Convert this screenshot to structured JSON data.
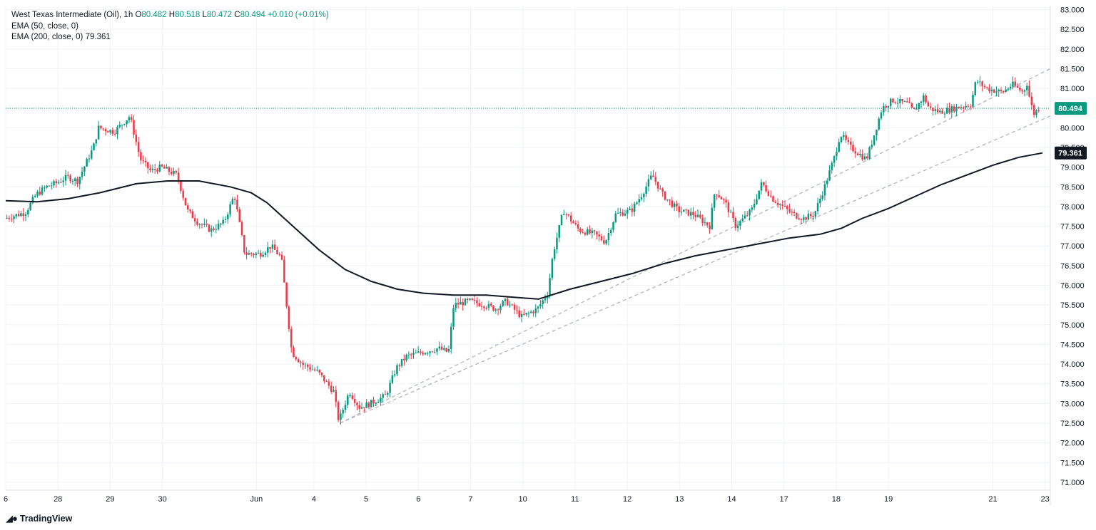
{
  "header": {
    "symbol": "West Texas Intermediate (Oil), 1h",
    "o_label": "O",
    "o_value": "80.482",
    "h_label": "H",
    "h_value": "80.518",
    "l_label": "L",
    "l_value": "80.472",
    "c_label": "C",
    "c_value": "80.494",
    "change": "+0.010 (+0.01%)",
    "ema50_label": "EMA (50, close, 0)",
    "ema200_label": "EMA (200, close, 0)",
    "ema200_value": "79.361"
  },
  "branding": {
    "logo_text": "TradingView"
  },
  "colors": {
    "up": "#089981",
    "down": "#f23645",
    "ema": "#131722",
    "trend": "#b2b5be",
    "grid": "#f0f3fa"
  },
  "chart_data": {
    "type": "candlestick",
    "price_axis": {
      "ticks": [
        "83.000",
        "82.500",
        "82.000",
        "81.500",
        "81.000",
        "80.500",
        "80.000",
        "79.500",
        "79.000",
        "78.500",
        "78.000",
        "77.500",
        "77.000",
        "76.500",
        "76.000",
        "75.500",
        "75.000",
        "74.500",
        "74.000",
        "73.500",
        "73.000",
        "72.500",
        "72.000",
        "71.500",
        "71.000"
      ],
      "range": [
        70.8,
        83.1
      ],
      "last_price_label": "80.494",
      "ema200_label": "79.361"
    },
    "time_axis": {
      "labels": [
        "6",
        "28",
        "29",
        "30",
        "Jun",
        "4",
        "5",
        "6",
        "7",
        "10",
        "11",
        "12",
        "13",
        "14",
        "17",
        "18",
        "19",
        "21",
        "23"
      ],
      "positions": [
        0.0,
        1.0,
        2.0,
        3.0,
        4.8,
        5.9,
        6.9,
        7.9,
        8.9,
        9.9,
        10.9,
        11.9,
        12.9,
        13.9,
        14.9,
        15.9,
        16.9,
        18.9,
        19.9
      ],
      "range": [
        0.0,
        20.0
      ]
    },
    "price_path": [
      [
        0.0,
        77.7
      ],
      [
        0.4,
        77.85
      ],
      [
        0.6,
        78.3
      ],
      [
        0.8,
        78.5
      ],
      [
        1.0,
        78.6
      ],
      [
        1.2,
        78.75
      ],
      [
        1.4,
        78.65
      ],
      [
        1.7,
        79.5
      ],
      [
        1.8,
        80.0
      ],
      [
        2.1,
        79.9
      ],
      [
        2.4,
        80.3
      ],
      [
        2.6,
        79.2
      ],
      [
        2.8,
        78.9
      ],
      [
        3.0,
        79.0
      ],
      [
        3.3,
        78.8
      ],
      [
        3.5,
        77.9
      ],
      [
        3.7,
        77.6
      ],
      [
        3.95,
        77.4
      ],
      [
        4.2,
        77.6
      ],
      [
        4.4,
        78.3
      ],
      [
        4.6,
        76.8
      ],
      [
        4.9,
        76.8
      ],
      [
        5.1,
        77.0
      ],
      [
        5.3,
        76.7
      ],
      [
        5.5,
        74.3
      ],
      [
        5.7,
        74.0
      ],
      [
        6.0,
        73.8
      ],
      [
        6.3,
        73.3
      ],
      [
        6.4,
        72.55
      ],
      [
        6.6,
        73.3
      ],
      [
        6.8,
        72.9
      ],
      [
        7.0,
        73.0
      ],
      [
        7.3,
        73.2
      ],
      [
        7.5,
        73.9
      ],
      [
        7.7,
        74.2
      ],
      [
        8.0,
        74.3
      ],
      [
        8.3,
        74.4
      ],
      [
        8.5,
        74.3
      ],
      [
        8.6,
        75.5
      ],
      [
        8.9,
        75.6
      ],
      [
        9.2,
        75.5
      ],
      [
        9.4,
        75.4
      ],
      [
        9.6,
        75.6
      ],
      [
        9.9,
        75.2
      ],
      [
        10.2,
        75.4
      ],
      [
        10.4,
        75.8
      ],
      [
        10.5,
        76.8
      ],
      [
        10.7,
        77.9
      ],
      [
        11.0,
        77.4
      ],
      [
        11.3,
        77.3
      ],
      [
        11.5,
        77.1
      ],
      [
        11.7,
        77.8
      ],
      [
        12.0,
        77.9
      ],
      [
        12.2,
        78.3
      ],
      [
        12.4,
        78.8
      ],
      [
        12.6,
        78.3
      ],
      [
        12.9,
        77.9
      ],
      [
        13.2,
        77.8
      ],
      [
        13.5,
        77.5
      ],
      [
        13.6,
        78.4
      ],
      [
        13.8,
        78.1
      ],
      [
        14.0,
        77.5
      ],
      [
        14.3,
        77.9
      ],
      [
        14.5,
        78.6
      ],
      [
        14.7,
        78.2
      ],
      [
        14.9,
        78.0
      ],
      [
        15.1,
        77.8
      ],
      [
        15.3,
        77.7
      ],
      [
        15.5,
        77.8
      ],
      [
        15.7,
        78.5
      ],
      [
        15.9,
        79.3
      ],
      [
        16.0,
        79.85
      ],
      [
        16.2,
        79.5
      ],
      [
        16.5,
        79.2
      ],
      [
        16.6,
        79.6
      ],
      [
        16.8,
        80.5
      ],
      [
        17.0,
        80.7
      ],
      [
        17.3,
        80.6
      ],
      [
        17.4,
        80.4
      ],
      [
        17.6,
        80.8
      ],
      [
        17.7,
        80.5
      ],
      [
        17.9,
        80.4
      ],
      [
        18.2,
        80.5
      ],
      [
        18.5,
        80.6
      ],
      [
        18.6,
        81.2
      ],
      [
        18.8,
        81.0
      ],
      [
        19.1,
        80.9
      ],
      [
        19.3,
        81.1
      ],
      [
        19.5,
        80.9
      ],
      [
        19.6,
        81.2
      ],
      [
        19.62,
        80.8
      ],
      [
        19.7,
        80.35
      ],
      [
        19.8,
        80.494
      ]
    ],
    "series": [
      {
        "name": "EMA (50, close, 0)",
        "values": [
          [
            0.0,
            78.15
          ],
          [
            0.6,
            78.12
          ],
          [
            1.2,
            78.2
          ],
          [
            1.8,
            78.35
          ],
          [
            2.5,
            78.58
          ],
          [
            3.1,
            78.65
          ],
          [
            3.7,
            78.65
          ],
          [
            4.3,
            78.5
          ],
          [
            4.7,
            78.35
          ],
          [
            5.0,
            78.1
          ],
          [
            5.5,
            77.5
          ],
          [
            6.0,
            76.9
          ],
          [
            6.5,
            76.4
          ],
          [
            7.0,
            76.1
          ],
          [
            7.5,
            75.9
          ],
          [
            8.0,
            75.8
          ],
          [
            8.6,
            75.75
          ],
          [
            9.2,
            75.75
          ],
          [
            9.7,
            75.7
          ],
          [
            10.2,
            75.65
          ],
          [
            10.8,
            75.9
          ],
          [
            11.4,
            76.1
          ],
          [
            12.0,
            76.3
          ],
          [
            12.6,
            76.55
          ],
          [
            13.2,
            76.75
          ],
          [
            13.8,
            76.9
          ],
          [
            14.4,
            77.05
          ],
          [
            15.0,
            77.2
          ],
          [
            15.6,
            77.3
          ],
          [
            16.0,
            77.45
          ],
          [
            16.4,
            77.7
          ],
          [
            16.9,
            77.95
          ],
          [
            17.4,
            78.25
          ],
          [
            17.9,
            78.55
          ],
          [
            18.4,
            78.8
          ],
          [
            18.9,
            79.05
          ],
          [
            19.4,
            79.25
          ],
          [
            19.85,
            79.361
          ]
        ]
      }
    ],
    "trend_lines": [
      {
        "from": [
          6.4,
          72.5
        ],
        "to": [
          20.0,
          81.5
        ]
      },
      {
        "from": [
          6.4,
          72.5
        ],
        "to": [
          20.0,
          80.3
        ]
      }
    ],
    "last_price_line": 80.494
  }
}
